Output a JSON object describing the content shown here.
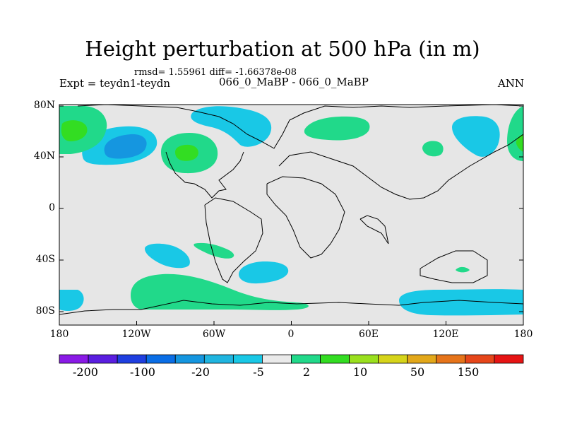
{
  "title": "Height perturbation at 500 hPa (in m)",
  "stats_text": "rmsd= 1.55961 diff= -1.66378e-08",
  "experiment_label": "Expt = teydn1-teydn",
  "experiment_center": "066_0_MaBP - 066_0_MaBP",
  "season": "ANN",
  "lat_labels": [
    "80N",
    "40N",
    "0",
    "40S",
    "80S"
  ],
  "lon_labels": [
    "180",
    "120W",
    "60W",
    "0",
    "60E",
    "120E",
    "180"
  ],
  "colorbar": {
    "labels": [
      "-200",
      "-100",
      "-20",
      "-5",
      "2",
      "10",
      "50",
      "150"
    ],
    "colors": [
      "#8a1ae6",
      "#5a1ee0",
      "#1f3fe0",
      "#0a6ee6",
      "#1596e0",
      "#20b5e0",
      "#19c8e6",
      "#eaeaea",
      "#21d98a",
      "#33dd22",
      "#9ae01e",
      "#d6d41a",
      "#e3a81a",
      "#e6741a",
      "#e6461a",
      "#e61414"
    ]
  },
  "colors": {
    "map_background": "#e6e6e6",
    "positive_shade": "#21d98a",
    "positive_strong": "#33dd22",
    "negative_shade": "#19c8e6",
    "negative_strong": "#1596e0"
  }
}
